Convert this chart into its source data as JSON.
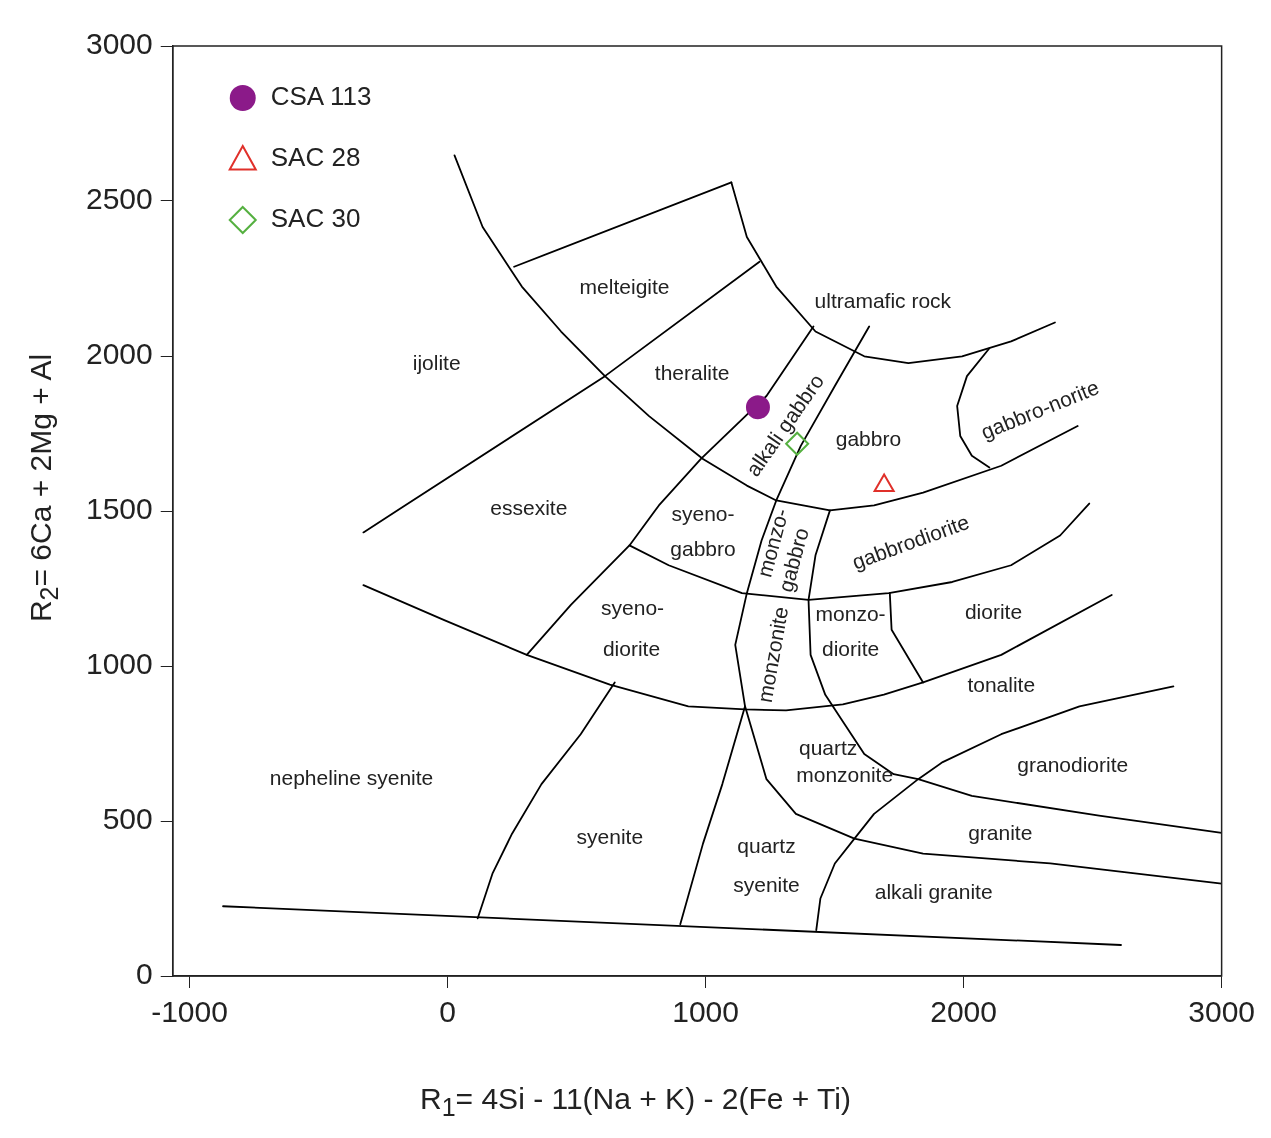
{
  "chart_data": {
    "type": "scatter",
    "xlabel": "R$_{1}$= 4Si - 11(Na + K) - 2(Fe + Ti)",
    "ylabel": "R$_{2}$= 6Ca + 2Mg + Al",
    "xlim": [
      -1065,
      3000
    ],
    "ylim": [
      0,
      3000
    ],
    "xticks": [
      -1000,
      0,
      1000,
      2000,
      3000
    ],
    "yticks": [
      0,
      500,
      1000,
      1500,
      2000,
      2500,
      3000
    ],
    "grid": false,
    "legend": "top left",
    "series": [
      {
        "name": "CSA 113",
        "color": "#8b1a89",
        "marker": "circle",
        "x": [
          1203
        ],
        "values": [
          1835
        ]
      },
      {
        "name": "SAC 28",
        "color": "#e0302a",
        "marker": "triangle",
        "x": [
          1692
        ],
        "values": [
          1582
        ]
      },
      {
        "name": "SAC 30",
        "color": "#55b040",
        "marker": "diamond",
        "x": [
          1355
        ],
        "values": [
          1717
        ]
      },
      {
        "type": "line",
        "color": "#000000",
        "x": [
          -870,
          2610
        ],
        "values": [
          225,
          100
        ]
      },
      {
        "type": "line",
        "color": "#000000",
        "x": [
          27,
          136,
          288,
          440,
          610,
          781,
          990,
          1160,
          1274,
          1482,
          1653,
          1843,
          2146,
          2442
        ],
        "values": [
          2647,
          2416,
          2224,
          2079,
          1935,
          1806,
          1668,
          1582,
          1534,
          1502,
          1518,
          1559,
          1646,
          1774
        ]
      },
      {
        "type": "line",
        "color": "#000000",
        "x": [
          1100,
          1160,
          1274,
          1426,
          1615,
          1786,
          1994,
          2184,
          2354
        ],
        "values": [
          2560,
          2384,
          2224,
          2079,
          1999,
          1977,
          1999,
          2047,
          2108
        ]
      },
      {
        "type": "line",
        "color": "#000000",
        "x": [
          258,
          1100
        ],
        "values": [
          2288,
          2560
        ]
      },
      {
        "type": "line",
        "color": "#000000",
        "x": [
          -326,
          610,
          1209
        ],
        "values": [
          1431,
          1935,
          2304
        ]
      },
      {
        "type": "line",
        "color": "#000000",
        "x": [
          1418,
          1236,
          982,
          819,
          705,
          478,
          307
        ],
        "values": [
          2095,
          1871,
          1668,
          1518,
          1389,
          1197,
          1036
        ]
      },
      {
        "type": "line",
        "color": "#000000",
        "x": [
          1634,
          1501,
          1369,
          1274,
          1217,
          1160,
          1115,
          1153,
          1065,
          990,
          902
        ],
        "values": [
          2095,
          1903,
          1710,
          1534,
          1405,
          1235,
          1068,
          870,
          619,
          427,
          167
        ]
      },
      {
        "type": "line",
        "color": "#000000",
        "x": [
          1482,
          1426,
          1399,
          1407,
          1464,
          1539,
          1615,
          1729,
          1824,
          2032,
          2525,
          3000
        ],
        "values": [
          1502,
          1357,
          1213,
          1036,
          907,
          812,
          716,
          651,
          635,
          581,
          517,
          462
        ]
      },
      {
        "type": "line",
        "color": "#000000",
        "x": [
          705,
          857,
          1141,
          1399,
          1710,
          1956,
          2184,
          2374,
          2487
        ],
        "values": [
          1389,
          1325,
          1235,
          1213,
          1235,
          1271,
          1325,
          1421,
          1524
        ]
      },
      {
        "type": "line",
        "color": "#000000",
        "x": [
          1714,
          1721,
          1843
        ],
        "values": [
          1235,
          1117,
          947
        ]
      },
      {
        "type": "line",
        "color": "#000000",
        "x": [
          -326,
          -15,
          307,
          629,
          933,
          1153,
          1312,
          1532,
          1691,
          1843,
          2146,
          2574
        ],
        "values": [
          1261,
          1149,
          1036,
          940,
          870,
          860,
          857,
          876,
          908,
          947,
          1036,
          1229
        ]
      },
      {
        "type": "line",
        "color": "#000000",
        "x": [
          2813,
          2449,
          2146,
          1919,
          1824,
          1653,
          1577,
          1501,
          1445,
          1429
        ],
        "values": [
          934,
          870,
          780,
          690,
          635,
          523,
          443,
          363,
          250,
          148
        ]
      },
      {
        "type": "line",
        "color": "#000000",
        "x": [
          1153,
          1236,
          1350,
          1577,
          1843,
          2336,
          3000
        ],
        "values": [
          870,
          635,
          523,
          443,
          395,
          363,
          298
        ]
      },
      {
        "type": "line",
        "color": "#000000",
        "x": [
          648,
          516,
          364,
          250,
          174,
          117
        ],
        "values": [
          947,
          780,
          619,
          459,
          330,
          186
        ]
      },
      {
        "type": "line",
        "color": "#000000",
        "x": [
          2100,
          2013,
          1975,
          1987,
          2032,
          2100
        ],
        "values": [
          2025,
          1935,
          1839,
          1742,
          1678,
          1640
        ]
      }
    ],
    "annotations": [
      "melteigite",
      "ultramafic rock",
      "ijolite",
      "theralite",
      "alkali gabbro",
      "gabbro",
      "gabbro-norite",
      "essexite",
      "syeno-",
      "gabbro",
      "monzo-",
      "gabbro",
      "gabbrodiorite",
      "syeno-",
      "diorite",
      "monzonite",
      "monzo-",
      "diorite",
      "diorite",
      "tonalite",
      "quartz",
      "monzonite",
      "nepheline syenite",
      "granodiorite",
      "syenite",
      "quartz",
      "syenite",
      "granite",
      "alkali granite"
    ]
  }
}
